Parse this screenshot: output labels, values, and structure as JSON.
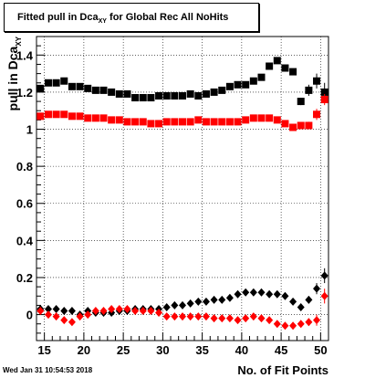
{
  "title_prefix": "Fitted pull in Dca",
  "title_sub": "XY",
  "title_suffix": " for Global Rec All NoHits",
  "timestamp": "Wed Jan 31 10:54:53 2018",
  "chart_data": {
    "type": "scatter",
    "title": "Fitted pull in Dca_XY for Global Rec All NoHits",
    "xlabel": "No. of Fit Points",
    "ylabel_prefix": "pull in Dca",
    "ylabel_sub": "XY",
    "xlim": [
      14,
      51
    ],
    "ylim": [
      -0.14,
      1.5
    ],
    "grid": true,
    "xticks": [
      15,
      20,
      25,
      30,
      35,
      40,
      45,
      50
    ],
    "yticks": [
      0,
      0.2,
      0.4,
      0.6,
      0.8,
      1,
      1.2,
      1.4
    ],
    "ytick_labels": [
      "0",
      "0.2",
      "0.4",
      "0.6",
      "0.8",
      "1",
      "1.2",
      "1.4"
    ],
    "series": [
      {
        "marker": "square",
        "color": "#000000",
        "x": [
          14.5,
          15.5,
          16.5,
          17.5,
          18.5,
          19.5,
          20.5,
          21.5,
          22.5,
          23.5,
          24.5,
          25.5,
          26.5,
          27.5,
          28.5,
          29.5,
          30.5,
          31.5,
          32.5,
          33.5,
          34.5,
          35.5,
          36.5,
          37.5,
          38.5,
          39.5,
          40.5,
          41.5,
          42.5,
          43.5,
          44.5,
          45.5,
          46.5,
          47.5,
          48.5,
          49.5,
          50.5
        ],
        "y": [
          1.22,
          1.25,
          1.25,
          1.26,
          1.23,
          1.23,
          1.22,
          1.21,
          1.21,
          1.2,
          1.19,
          1.19,
          1.17,
          1.17,
          1.17,
          1.18,
          1.18,
          1.18,
          1.18,
          1.19,
          1.18,
          1.19,
          1.2,
          1.21,
          1.23,
          1.24,
          1.24,
          1.26,
          1.28,
          1.34,
          1.37,
          1.33,
          1.31,
          1.15,
          1.21,
          1.26,
          1.2
        ],
        "err": [
          0,
          0,
          0,
          0,
          0,
          0,
          0,
          0,
          0,
          0,
          0,
          0,
          0,
          0,
          0,
          0,
          0,
          0,
          0,
          0,
          0,
          0,
          0,
          0,
          0,
          0,
          0,
          0,
          0,
          0,
          0,
          0,
          0,
          0.02,
          0.03,
          0.04,
          0.05
        ]
      },
      {
        "marker": "square",
        "color": "#ff0000",
        "x": [
          14.5,
          15.5,
          16.5,
          17.5,
          18.5,
          19.5,
          20.5,
          21.5,
          22.5,
          23.5,
          24.5,
          25.5,
          26.5,
          27.5,
          28.5,
          29.5,
          30.5,
          31.5,
          32.5,
          33.5,
          34.5,
          35.5,
          36.5,
          37.5,
          38.5,
          39.5,
          40.5,
          41.5,
          42.5,
          43.5,
          44.5,
          45.5,
          46.5,
          47.5,
          48.5,
          49.5,
          50.5
        ],
        "y": [
          1.07,
          1.08,
          1.08,
          1.08,
          1.07,
          1.07,
          1.06,
          1.06,
          1.06,
          1.05,
          1.05,
          1.04,
          1.04,
          1.04,
          1.03,
          1.03,
          1.04,
          1.04,
          1.04,
          1.04,
          1.05,
          1.04,
          1.04,
          1.04,
          1.04,
          1.04,
          1.05,
          1.06,
          1.06,
          1.06,
          1.05,
          1.03,
          1.01,
          1.02,
          1.02,
          1.08,
          1.16
        ],
        "err": [
          0,
          0,
          0,
          0,
          0,
          0,
          0,
          0,
          0,
          0,
          0,
          0,
          0,
          0,
          0,
          0,
          0,
          0,
          0,
          0,
          0,
          0,
          0,
          0,
          0,
          0,
          0,
          0,
          0,
          0,
          0,
          0,
          0,
          0.01,
          0.02,
          0.03,
          0.03
        ]
      },
      {
        "marker": "diamond",
        "color": "#000000",
        "x": [
          14.5,
          15.5,
          16.5,
          17.5,
          18.5,
          19.5,
          20.5,
          21.5,
          22.5,
          23.5,
          24.5,
          25.5,
          26.5,
          27.5,
          28.5,
          29.5,
          30.5,
          31.5,
          32.5,
          33.5,
          34.5,
          35.5,
          36.5,
          37.5,
          38.5,
          39.5,
          40.5,
          41.5,
          42.5,
          43.5,
          44.5,
          45.5,
          46.5,
          47.5,
          48.5,
          49.5,
          50.5
        ],
        "y": [
          0.03,
          0.03,
          0.03,
          0.02,
          0.02,
          0.0,
          0.02,
          0.01,
          0.01,
          0.01,
          0.02,
          0.02,
          0.03,
          0.03,
          0.03,
          0.03,
          0.04,
          0.05,
          0.05,
          0.06,
          0.07,
          0.07,
          0.08,
          0.08,
          0.09,
          0.11,
          0.12,
          0.12,
          0.12,
          0.11,
          0.11,
          0.1,
          0.07,
          0.04,
          0.08,
          0.14,
          0.21
        ],
        "err": [
          0,
          0,
          0,
          0,
          0,
          0,
          0,
          0,
          0,
          0,
          0,
          0,
          0,
          0,
          0,
          0,
          0,
          0,
          0,
          0,
          0,
          0,
          0,
          0,
          0,
          0,
          0,
          0,
          0,
          0,
          0,
          0,
          0,
          0.01,
          0.02,
          0.03,
          0.04
        ]
      },
      {
        "marker": "diamond",
        "color": "#ff0000",
        "x": [
          14.5,
          15.5,
          16.5,
          17.5,
          18.5,
          19.5,
          20.5,
          21.5,
          22.5,
          23.5,
          24.5,
          25.5,
          26.5,
          27.5,
          28.5,
          29.5,
          30.5,
          31.5,
          32.5,
          33.5,
          34.5,
          35.5,
          36.5,
          37.5,
          38.5,
          39.5,
          40.5,
          41.5,
          42.5,
          43.5,
          44.5,
          45.5,
          46.5,
          47.5,
          48.5,
          49.5,
          50.5
        ],
        "y": [
          0.02,
          0.0,
          -0.01,
          -0.03,
          -0.04,
          -0.01,
          0.0,
          0.02,
          0.02,
          0.03,
          0.03,
          0.03,
          0.02,
          0.02,
          0.02,
          0.01,
          -0.01,
          -0.01,
          -0.01,
          -0.01,
          -0.01,
          -0.01,
          -0.02,
          -0.02,
          -0.02,
          -0.03,
          -0.02,
          -0.01,
          -0.02,
          -0.03,
          -0.05,
          -0.06,
          -0.06,
          -0.05,
          -0.04,
          -0.03,
          0.1
        ],
        "err": [
          0,
          0,
          0,
          0,
          0,
          0,
          0,
          0,
          0,
          0,
          0,
          0,
          0,
          0,
          0,
          0,
          0,
          0,
          0,
          0,
          0,
          0,
          0,
          0,
          0,
          0,
          0,
          0,
          0,
          0,
          0,
          0,
          0,
          0.01,
          0.02,
          0.03,
          0.04
        ]
      }
    ]
  }
}
